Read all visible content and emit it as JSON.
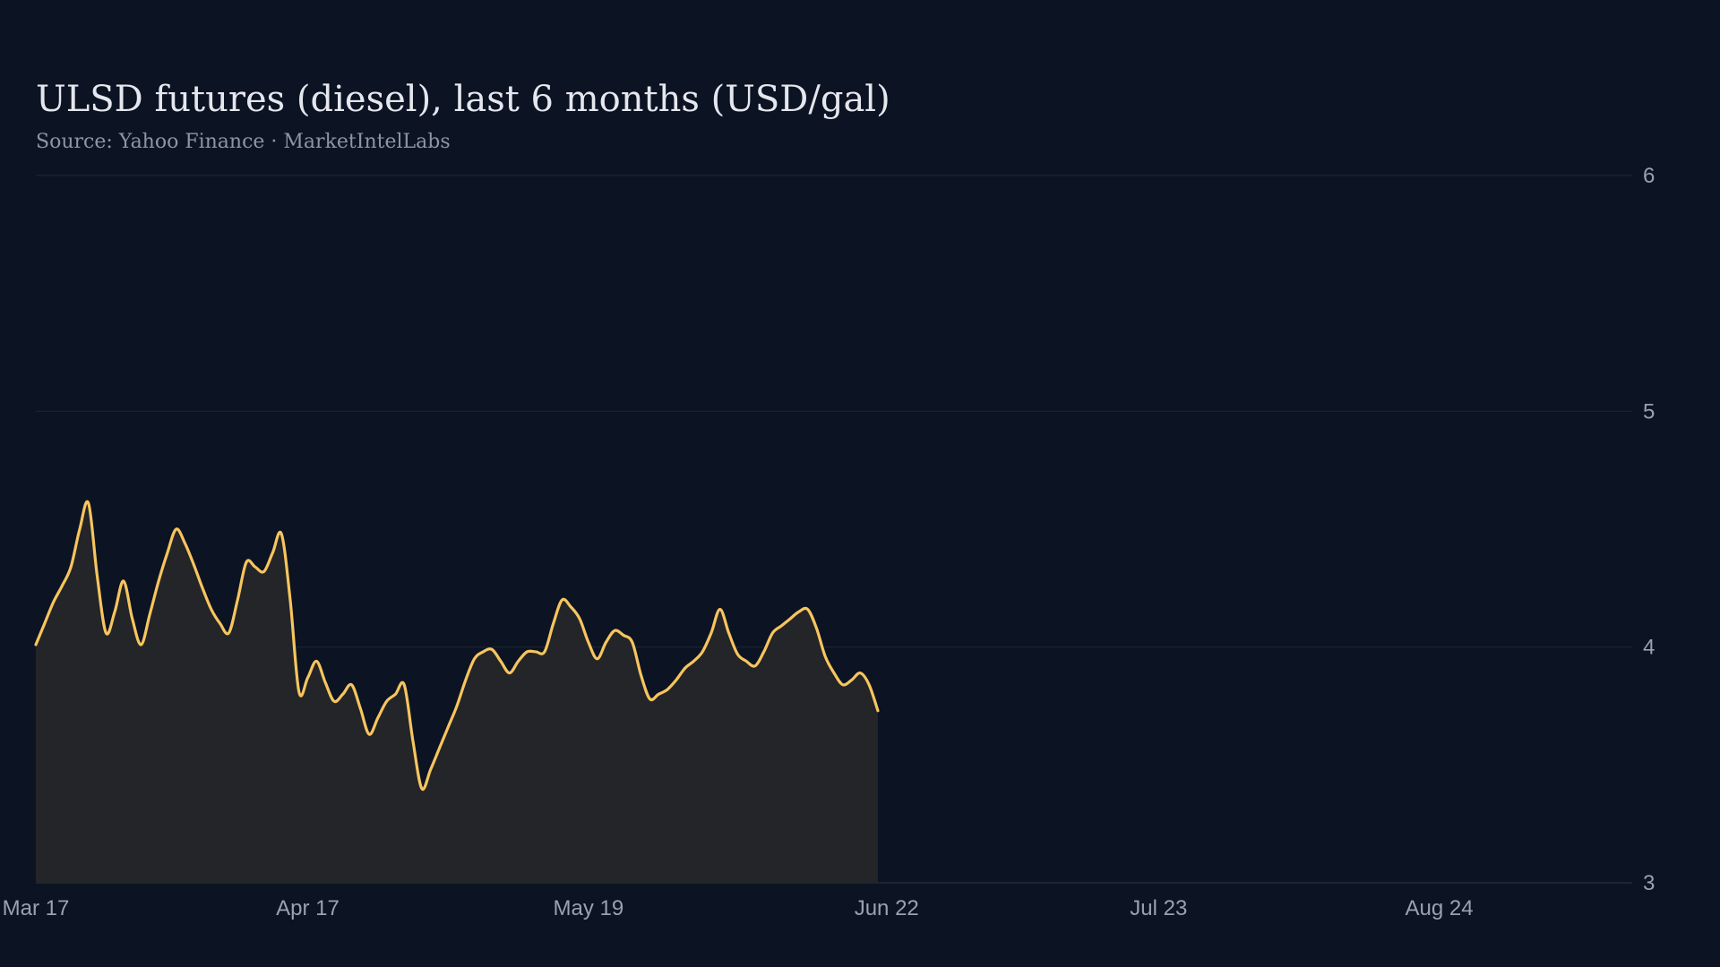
{
  "chart_data": {
    "type": "area",
    "title": "ULSD futures (diesel), last 6 months (USD/gal)",
    "subtitle": "Source: Yahoo Finance · MarketIntelLabs",
    "xlabel": "",
    "ylabel": "",
    "x_start": "2025-03-17",
    "x_end": "2025-09-15",
    "x_ticks": [
      {
        "date": "2025-03-17",
        "label": "Mar 17"
      },
      {
        "date": "2025-04-17",
        "label": "Apr 17"
      },
      {
        "date": "2025-05-19",
        "label": "May 19"
      },
      {
        "date": "2025-06-22",
        "label": "Jun 22"
      },
      {
        "date": "2025-07-23",
        "label": "Jul 23"
      },
      {
        "date": "2025-08-24",
        "label": "Aug 24"
      }
    ],
    "ylim": [
      3,
      6
    ],
    "y_ticks": [
      {
        "value": 6,
        "label": "6"
      },
      {
        "value": 5,
        "label": "5"
      },
      {
        "value": 4,
        "label": "4"
      },
      {
        "value": 3,
        "label": "3"
      }
    ],
    "grid": true,
    "y_axis_position": "right",
    "series": [
      {
        "color": "#f7c55e",
        "fill": "#232528",
        "points": [
          [
            "2025-03-17",
            4.01
          ],
          [
            "2025-03-18",
            4.1
          ],
          [
            "2025-03-19",
            4.19
          ],
          [
            "2025-03-20",
            4.26
          ],
          [
            "2025-03-21",
            4.34
          ],
          [
            "2025-03-22",
            4.5
          ],
          [
            "2025-03-23",
            4.61
          ],
          [
            "2025-03-24",
            4.3
          ],
          [
            "2025-03-25",
            4.06
          ],
          [
            "2025-03-26",
            4.15
          ],
          [
            "2025-03-27",
            4.28
          ],
          [
            "2025-03-28",
            4.12
          ],
          [
            "2025-03-29",
            4.01
          ],
          [
            "2025-03-30",
            4.14
          ],
          [
            "2025-03-31",
            4.28
          ],
          [
            "2025-04-01",
            4.4
          ],
          [
            "2025-04-02",
            4.5
          ],
          [
            "2025-04-03",
            4.44
          ],
          [
            "2025-04-04",
            4.35
          ],
          [
            "2025-04-05",
            4.25
          ],
          [
            "2025-04-06",
            4.16
          ],
          [
            "2025-04-07",
            4.1
          ],
          [
            "2025-04-08",
            4.06
          ],
          [
            "2025-04-09",
            4.2
          ],
          [
            "2025-04-10",
            4.36
          ],
          [
            "2025-04-11",
            4.34
          ],
          [
            "2025-04-12",
            4.32
          ],
          [
            "2025-04-13",
            4.4
          ],
          [
            "2025-04-14",
            4.48
          ],
          [
            "2025-04-15",
            4.2
          ],
          [
            "2025-04-16",
            3.81
          ],
          [
            "2025-04-17",
            3.87
          ],
          [
            "2025-04-18",
            3.94
          ],
          [
            "2025-04-19",
            3.85
          ],
          [
            "2025-04-20",
            3.77
          ],
          [
            "2025-04-21",
            3.8
          ],
          [
            "2025-04-22",
            3.84
          ],
          [
            "2025-04-23",
            3.74
          ],
          [
            "2025-04-24",
            3.63
          ],
          [
            "2025-04-25",
            3.7
          ],
          [
            "2025-04-26",
            3.77
          ],
          [
            "2025-04-27",
            3.8
          ],
          [
            "2025-04-28",
            3.84
          ],
          [
            "2025-04-29",
            3.6
          ],
          [
            "2025-04-30",
            3.4
          ],
          [
            "2025-05-01",
            3.48
          ],
          [
            "2025-05-02",
            3.57
          ],
          [
            "2025-05-03",
            3.66
          ],
          [
            "2025-05-04",
            3.75
          ],
          [
            "2025-05-05",
            3.86
          ],
          [
            "2025-05-06",
            3.95
          ],
          [
            "2025-05-07",
            3.98
          ],
          [
            "2025-05-08",
            3.99
          ],
          [
            "2025-05-09",
            3.94
          ],
          [
            "2025-05-10",
            3.89
          ],
          [
            "2025-05-11",
            3.94
          ],
          [
            "2025-05-12",
            3.98
          ],
          [
            "2025-05-13",
            3.98
          ],
          [
            "2025-05-14",
            3.98
          ],
          [
            "2025-05-15",
            4.1
          ],
          [
            "2025-05-16",
            4.2
          ],
          [
            "2025-05-17",
            4.17
          ],
          [
            "2025-05-18",
            4.12
          ],
          [
            "2025-05-19",
            4.02
          ],
          [
            "2025-05-20",
            3.95
          ],
          [
            "2025-05-21",
            4.02
          ],
          [
            "2025-05-22",
            4.07
          ],
          [
            "2025-05-23",
            4.05
          ],
          [
            "2025-05-24",
            4.02
          ],
          [
            "2025-05-25",
            3.88
          ],
          [
            "2025-05-26",
            3.78
          ],
          [
            "2025-05-27",
            3.8
          ],
          [
            "2025-05-28",
            3.82
          ],
          [
            "2025-05-29",
            3.86
          ],
          [
            "2025-05-30",
            3.91
          ],
          [
            "2025-05-31",
            3.94
          ],
          [
            "2025-06-01",
            3.98
          ],
          [
            "2025-06-02",
            4.06
          ],
          [
            "2025-06-03",
            4.16
          ],
          [
            "2025-06-04",
            4.06
          ],
          [
            "2025-06-05",
            3.97
          ],
          [
            "2025-06-06",
            3.94
          ],
          [
            "2025-06-07",
            3.92
          ],
          [
            "2025-06-08",
            3.98
          ],
          [
            "2025-06-09",
            4.06
          ],
          [
            "2025-06-10",
            4.09
          ],
          [
            "2025-06-11",
            4.12
          ],
          [
            "2025-06-12",
            4.15
          ],
          [
            "2025-06-13",
            4.16
          ],
          [
            "2025-06-14",
            4.08
          ],
          [
            "2025-06-15",
            3.96
          ],
          [
            "2025-06-16",
            3.89
          ],
          [
            "2025-06-17",
            3.84
          ],
          [
            "2025-06-18",
            3.86
          ],
          [
            "2025-06-19",
            3.89
          ],
          [
            "2025-06-20",
            3.84
          ],
          [
            "2025-06-21",
            3.73
          ]
        ]
      }
    ]
  }
}
